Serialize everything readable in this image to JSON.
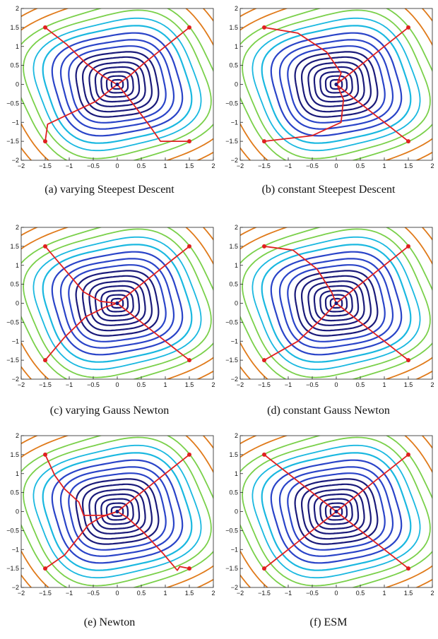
{
  "axes": {
    "xlim": [
      -2,
      2
    ],
    "ylim": [
      -2,
      2
    ],
    "xticks": [
      "−2",
      "−1.5",
      "−1",
      "−0.5",
      "0",
      "0.5",
      "1",
      "1.5",
      "2"
    ],
    "yticks": [
      "2",
      "1.5",
      "1",
      "0.5",
      "0",
      "−0.5",
      "−1",
      "−1.5",
      "−2"
    ]
  },
  "colors": {
    "contour_inner": "#1a1a7a",
    "contour_mid": "#2a44c8",
    "contour_cyan": "#1ab8e0",
    "contour_green": "#7ad04a",
    "contour_orange": "#e07a1a",
    "path": "#e02020",
    "marker": "#e02020",
    "center": "#1a1a7a"
  },
  "panels": [
    {
      "caption": "(a)  varying  Steepest  Descent"
    },
    {
      "caption": "(b) constant Steepest Descent"
    },
    {
      "caption": "(c)  varying  Gauss  Newton"
    },
    {
      "caption": "(d)  constant  Gauss  Newton"
    },
    {
      "caption": "(e)  Newton"
    },
    {
      "caption": "(f)  ESM"
    }
  ],
  "chart_data": [
    {
      "type": "line",
      "title": "(a) varying Steepest Descent",
      "xlim": [
        -2,
        2
      ],
      "ylim": [
        -2,
        2
      ],
      "start_points": [
        [
          -1.5,
          1.5
        ],
        [
          1.5,
          1.5
        ],
        [
          -1.5,
          -1.5
        ],
        [
          1.5,
          -1.5
        ]
      ],
      "target": [
        0,
        0
      ],
      "series": [
        {
          "values": [
            [
              -1.5,
              1.5
            ],
            [
              -1.05,
              1.05
            ],
            [
              -0.65,
              0.55
            ],
            [
              -0.3,
              0.22
            ],
            [
              -0.05,
              0.03
            ],
            [
              0,
              0
            ]
          ]
        },
        {
          "values": [
            [
              1.5,
              1.5
            ],
            [
              1.0,
              1.0
            ],
            [
              0.55,
              0.55
            ],
            [
              0.25,
              0.22
            ],
            [
              0.05,
              0.04
            ],
            [
              0,
              0
            ]
          ]
        },
        {
          "values": [
            [
              -1.5,
              -1.5
            ],
            [
              -1.45,
              -1.05
            ],
            [
              -0.95,
              -0.75
            ],
            [
              -0.45,
              -0.45
            ],
            [
              -0.15,
              -0.15
            ],
            [
              0,
              0
            ]
          ]
        },
        {
          "values": [
            [
              1.5,
              -1.5
            ],
            [
              0.9,
              -1.5
            ],
            [
              0.65,
              -1.05
            ],
            [
              0.35,
              -0.55
            ],
            [
              0.1,
              -0.15
            ],
            [
              0,
              0
            ]
          ]
        }
      ]
    },
    {
      "type": "line",
      "title": "(b) constant Steepest Descent",
      "xlim": [
        -2,
        2
      ],
      "ylim": [
        -2,
        2
      ],
      "start_points": [
        [
          -1.5,
          1.5
        ],
        [
          1.5,
          1.5
        ],
        [
          -1.5,
          -1.5
        ],
        [
          1.5,
          -1.5
        ]
      ],
      "target": [
        0,
        0
      ],
      "series": [
        {
          "values": [
            [
              -1.5,
              1.5
            ],
            [
              -0.8,
              1.35
            ],
            [
              -0.2,
              0.85
            ],
            [
              0.1,
              0.3
            ],
            [
              0.03,
              0.05
            ],
            [
              0,
              0
            ]
          ]
        },
        {
          "values": [
            [
              1.5,
              1.5
            ],
            [
              0.75,
              0.75
            ],
            [
              0.3,
              0.3
            ],
            [
              0,
              0
            ]
          ]
        },
        {
          "values": [
            [
              -1.5,
              -1.5
            ],
            [
              -0.5,
              -1.35
            ],
            [
              0.1,
              -1.0
            ],
            [
              0.15,
              -0.4
            ],
            [
              0.03,
              -0.05
            ],
            [
              0,
              0
            ]
          ]
        },
        {
          "values": [
            [
              1.5,
              -1.5
            ],
            [
              0.75,
              -0.75
            ],
            [
              0.3,
              -0.3
            ],
            [
              0,
              0
            ]
          ]
        }
      ]
    },
    {
      "type": "line",
      "title": "(c) varying Gauss Newton",
      "xlim": [
        -2,
        2
      ],
      "ylim": [
        -2,
        2
      ],
      "start_points": [
        [
          -1.5,
          1.5
        ],
        [
          1.5,
          1.5
        ],
        [
          -1.5,
          -1.5
        ],
        [
          1.5,
          -1.5
        ]
      ],
      "target": [
        0,
        0
      ],
      "series": [
        {
          "values": [
            [
              -1.5,
              1.5
            ],
            [
              -1.1,
              0.9
            ],
            [
              -0.7,
              0.3
            ],
            [
              -0.35,
              0.05
            ],
            [
              0,
              0
            ]
          ]
        },
        {
          "values": [
            [
              1.5,
              1.5
            ],
            [
              0.75,
              0.75
            ],
            [
              0.3,
              0.3
            ],
            [
              0,
              0
            ]
          ]
        },
        {
          "values": [
            [
              -1.5,
              -1.5
            ],
            [
              -1.1,
              -0.9
            ],
            [
              -0.65,
              -0.35
            ],
            [
              -0.25,
              -0.1
            ],
            [
              0,
              0
            ]
          ]
        },
        {
          "values": [
            [
              1.5,
              -1.5
            ],
            [
              0.75,
              -0.75
            ],
            [
              0.3,
              -0.3
            ],
            [
              0,
              0
            ]
          ]
        }
      ]
    },
    {
      "type": "line",
      "title": "(d) constant Gauss Newton",
      "xlim": [
        -2,
        2
      ],
      "ylim": [
        -2,
        2
      ],
      "start_points": [
        [
          -1.5,
          1.5
        ],
        [
          1.5,
          1.5
        ],
        [
          -1.5,
          -1.5
        ],
        [
          1.5,
          -1.5
        ]
      ],
      "target": [
        0,
        0
      ],
      "series": [
        {
          "values": [
            [
              -1.5,
              1.5
            ],
            [
              -0.9,
              1.4
            ],
            [
              -0.4,
              0.9
            ],
            [
              -0.1,
              0.3
            ],
            [
              0,
              0
            ]
          ]
        },
        {
          "values": [
            [
              1.5,
              1.5
            ],
            [
              0.75,
              0.75
            ],
            [
              0.3,
              0.3
            ],
            [
              0,
              0
            ]
          ]
        },
        {
          "values": [
            [
              -1.5,
              -1.5
            ],
            [
              -0.8,
              -1.0
            ],
            [
              -0.3,
              -0.4
            ],
            [
              0,
              0
            ]
          ]
        },
        {
          "values": [
            [
              1.5,
              -1.5
            ],
            [
              0.75,
              -0.75
            ],
            [
              0.3,
              -0.3
            ],
            [
              0,
              0
            ]
          ]
        }
      ]
    },
    {
      "type": "line",
      "title": "(e) Newton",
      "xlim": [
        -2,
        2
      ],
      "ylim": [
        -2,
        2
      ],
      "start_points": [
        [
          -1.5,
          1.5
        ],
        [
          1.5,
          1.5
        ],
        [
          -1.5,
          -1.5
        ],
        [
          1.5,
          -1.5
        ]
      ],
      "target": [
        0,
        0
      ],
      "series": [
        {
          "values": [
            [
              -1.5,
              1.5
            ],
            [
              -1.3,
              0.95
            ],
            [
              -1.1,
              0.6
            ],
            [
              -0.8,
              0.25
            ],
            [
              -0.7,
              -0.1
            ],
            [
              -0.25,
              -0.1
            ],
            [
              0,
              0
            ]
          ]
        },
        {
          "values": [
            [
              1.5,
              1.5
            ],
            [
              0.75,
              0.75
            ],
            [
              0.3,
              0.3
            ],
            [
              0,
              0
            ]
          ]
        },
        {
          "values": [
            [
              -1.5,
              -1.5
            ],
            [
              -1.1,
              -1.15
            ],
            [
              -0.85,
              -0.75
            ],
            [
              -0.6,
              -0.35
            ],
            [
              -0.35,
              -0.15
            ],
            [
              0,
              0
            ]
          ]
        },
        {
          "values": [
            [
              1.5,
              -1.5
            ],
            [
              1.3,
              -1.45
            ],
            [
              1.25,
              -1.55
            ],
            [
              0.95,
              -1.1
            ],
            [
              0.55,
              -0.55
            ],
            [
              0.2,
              -0.15
            ],
            [
              0,
              0
            ]
          ]
        }
      ]
    },
    {
      "type": "line",
      "title": "(f) ESM",
      "xlim": [
        -2,
        2
      ],
      "ylim": [
        -2,
        2
      ],
      "start_points": [
        [
          -1.5,
          1.5
        ],
        [
          1.5,
          1.5
        ],
        [
          -1.5,
          -1.5
        ],
        [
          1.5,
          -1.5
        ]
      ],
      "target": [
        0,
        0
      ],
      "series": [
        {
          "values": [
            [
              -1.5,
              1.5
            ],
            [
              -0.75,
              0.75
            ],
            [
              -0.3,
              0.3
            ],
            [
              0,
              0
            ]
          ]
        },
        {
          "values": [
            [
              1.5,
              1.5
            ],
            [
              0.75,
              0.75
            ],
            [
              0.3,
              0.3
            ],
            [
              0,
              0
            ]
          ]
        },
        {
          "values": [
            [
              -1.5,
              -1.5
            ],
            [
              -0.75,
              -0.75
            ],
            [
              -0.3,
              -0.3
            ],
            [
              0,
              0
            ]
          ]
        },
        {
          "values": [
            [
              1.5,
              -1.5
            ],
            [
              0.75,
              -0.75
            ],
            [
              0.3,
              -0.3
            ],
            [
              0,
              0
            ]
          ]
        }
      ]
    }
  ]
}
